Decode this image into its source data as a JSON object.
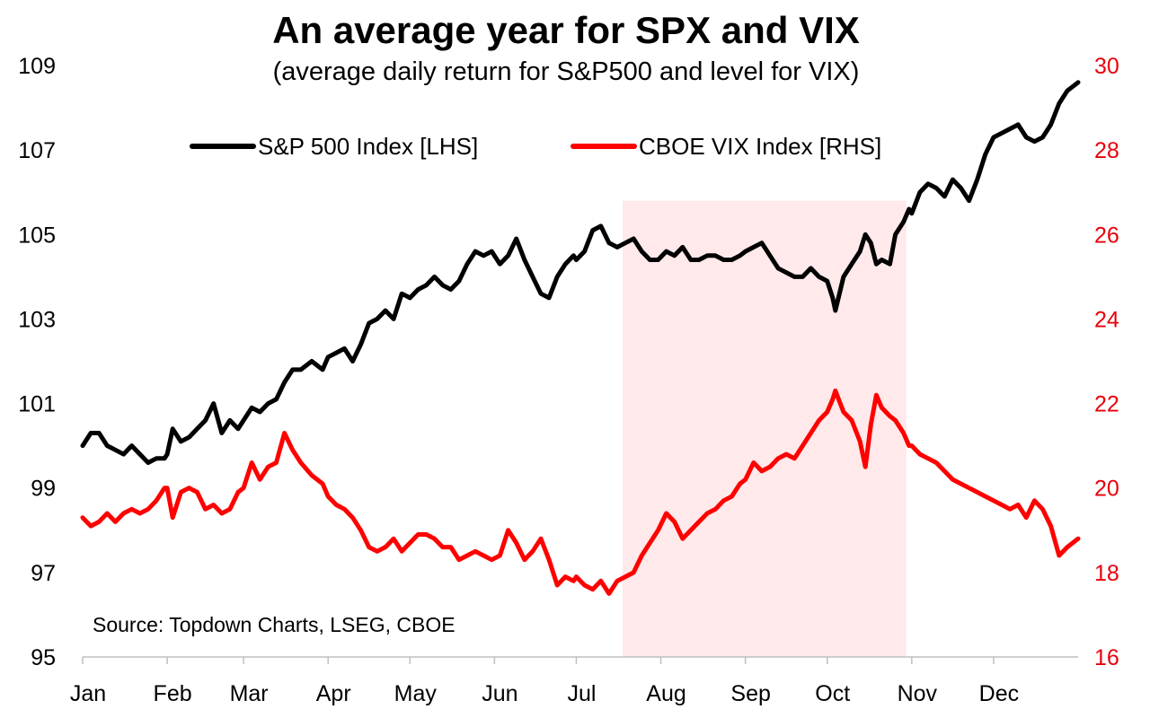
{
  "colors": {
    "spx": "#000000",
    "vix": "#ff0000",
    "shade": "#ffe9ea",
    "rhs_axis": "#e8000b"
  },
  "chart_data": {
    "type": "line",
    "title": "An average year for SPX and VIX",
    "subtitle": "(average daily return for S&P500 and level for VIX)",
    "source": "Source: Topdown Charts, LSEG, CBOE",
    "x_domain": [
      0,
      365
    ],
    "x_ticks": [
      {
        "label": "Jan",
        "day": 0
      },
      {
        "label": "Feb",
        "day": 31
      },
      {
        "label": "Mar",
        "day": 59
      },
      {
        "label": "Apr",
        "day": 90
      },
      {
        "label": "May",
        "day": 120
      },
      {
        "label": "Jun",
        "day": 151
      },
      {
        "label": "Jul",
        "day": 181
      },
      {
        "label": "Aug",
        "day": 212
      },
      {
        "label": "Sep",
        "day": 243
      },
      {
        "label": "Oct",
        "day": 273
      },
      {
        "label": "Nov",
        "day": 304
      },
      {
        "label": "Dec",
        "day": 334
      }
    ],
    "y_left": {
      "min": 95,
      "max": 109,
      "ticks": [
        95,
        97,
        99,
        101,
        103,
        105,
        107,
        109
      ]
    },
    "y_right": {
      "min": 16,
      "max": 30,
      "ticks": [
        16,
        18,
        20,
        22,
        24,
        26,
        28,
        30
      ]
    },
    "shaded_region": {
      "x_start": 198,
      "x_end": 302,
      "y_top": 105.8
    },
    "legend": {
      "position": "top-center"
    },
    "grid": false,
    "series": [
      {
        "name": "S&P 500 Index [LHS]",
        "axis": "left",
        "points": [
          [
            0,
            100.0
          ],
          [
            3,
            100.3
          ],
          [
            6,
            100.3
          ],
          [
            9,
            100.0
          ],
          [
            12,
            99.9
          ],
          [
            15,
            99.8
          ],
          [
            18,
            100.0
          ],
          [
            21,
            99.8
          ],
          [
            24,
            99.6
          ],
          [
            27,
            99.7
          ],
          [
            30,
            99.7
          ],
          [
            31,
            99.8
          ],
          [
            33,
            100.4
          ],
          [
            36,
            100.1
          ],
          [
            39,
            100.2
          ],
          [
            42,
            100.4
          ],
          [
            45,
            100.6
          ],
          [
            48,
            101.0
          ],
          [
            51,
            100.3
          ],
          [
            54,
            100.6
          ],
          [
            57,
            100.4
          ],
          [
            59,
            100.6
          ],
          [
            62,
            100.9
          ],
          [
            65,
            100.8
          ],
          [
            68,
            101.0
          ],
          [
            71,
            101.1
          ],
          [
            74,
            101.5
          ],
          [
            77,
            101.8
          ],
          [
            80,
            101.8
          ],
          [
            84,
            102.0
          ],
          [
            88,
            101.8
          ],
          [
            90,
            102.1
          ],
          [
            93,
            102.2
          ],
          [
            96,
            102.3
          ],
          [
            99,
            102.0
          ],
          [
            102,
            102.4
          ],
          [
            105,
            102.9
          ],
          [
            108,
            103.0
          ],
          [
            111,
            103.2
          ],
          [
            114,
            103.0
          ],
          [
            117,
            103.6
          ],
          [
            120,
            103.5
          ],
          [
            123,
            103.7
          ],
          [
            126,
            103.8
          ],
          [
            129,
            104.0
          ],
          [
            132,
            103.8
          ],
          [
            135,
            103.7
          ],
          [
            138,
            103.9
          ],
          [
            141,
            104.3
          ],
          [
            144,
            104.6
          ],
          [
            147,
            104.5
          ],
          [
            150,
            104.6
          ],
          [
            153,
            104.3
          ],
          [
            156,
            104.5
          ],
          [
            159,
            104.9
          ],
          [
            162,
            104.4
          ],
          [
            165,
            104.0
          ],
          [
            168,
            103.6
          ],
          [
            171,
            103.5
          ],
          [
            174,
            104.0
          ],
          [
            177,
            104.3
          ],
          [
            180,
            104.5
          ],
          [
            181,
            104.4
          ],
          [
            184,
            104.6
          ],
          [
            187,
            105.1
          ],
          [
            190,
            105.2
          ],
          [
            193,
            104.8
          ],
          [
            196,
            104.7
          ],
          [
            199,
            104.8
          ],
          [
            202,
            104.9
          ],
          [
            205,
            104.6
          ],
          [
            208,
            104.4
          ],
          [
            211,
            104.4
          ],
          [
            214,
            104.6
          ],
          [
            217,
            104.5
          ],
          [
            220,
            104.7
          ],
          [
            223,
            104.4
          ],
          [
            226,
            104.4
          ],
          [
            229,
            104.5
          ],
          [
            232,
            104.5
          ],
          [
            235,
            104.4
          ],
          [
            238,
            104.4
          ],
          [
            241,
            104.5
          ],
          [
            243,
            104.6
          ],
          [
            246,
            104.7
          ],
          [
            249,
            104.8
          ],
          [
            252,
            104.5
          ],
          [
            255,
            104.2
          ],
          [
            258,
            104.1
          ],
          [
            261,
            104.0
          ],
          [
            264,
            104.0
          ],
          [
            267,
            104.2
          ],
          [
            270,
            104.0
          ],
          [
            273,
            103.9
          ],
          [
            275,
            103.5
          ],
          [
            276,
            103.2
          ],
          [
            279,
            104.0
          ],
          [
            282,
            104.3
          ],
          [
            285,
            104.6
          ],
          [
            287,
            105.0
          ],
          [
            289,
            104.8
          ],
          [
            291,
            104.3
          ],
          [
            293,
            104.4
          ],
          [
            296,
            104.3
          ],
          [
            298,
            105.0
          ],
          [
            301,
            105.3
          ],
          [
            303,
            105.6
          ],
          [
            304,
            105.5
          ],
          [
            307,
            106.0
          ],
          [
            310,
            106.2
          ],
          [
            313,
            106.1
          ],
          [
            316,
            105.9
          ],
          [
            319,
            106.3
          ],
          [
            322,
            106.1
          ],
          [
            325,
            105.8
          ],
          [
            328,
            106.3
          ],
          [
            331,
            106.9
          ],
          [
            334,
            107.3
          ],
          [
            337,
            107.4
          ],
          [
            340,
            107.5
          ],
          [
            343,
            107.6
          ],
          [
            346,
            107.3
          ],
          [
            349,
            107.2
          ],
          [
            352,
            107.3
          ],
          [
            355,
            107.6
          ],
          [
            358,
            108.1
          ],
          [
            361,
            108.4
          ],
          [
            365,
            108.6
          ]
        ]
      },
      {
        "name": "CBOE VIX Index [RHS]",
        "axis": "right",
        "points": [
          [
            0,
            19.3
          ],
          [
            3,
            19.1
          ],
          [
            6,
            19.2
          ],
          [
            9,
            19.4
          ],
          [
            12,
            19.2
          ],
          [
            15,
            19.4
          ],
          [
            18,
            19.5
          ],
          [
            21,
            19.4
          ],
          [
            24,
            19.5
          ],
          [
            27,
            19.7
          ],
          [
            30,
            20.0
          ],
          [
            31,
            20.0
          ],
          [
            33,
            19.3
          ],
          [
            36,
            19.9
          ],
          [
            39,
            20.0
          ],
          [
            42,
            19.9
          ],
          [
            45,
            19.5
          ],
          [
            48,
            19.6
          ],
          [
            51,
            19.4
          ],
          [
            54,
            19.5
          ],
          [
            57,
            19.9
          ],
          [
            59,
            20.0
          ],
          [
            62,
            20.6
          ],
          [
            65,
            20.2
          ],
          [
            68,
            20.5
          ],
          [
            71,
            20.6
          ],
          [
            74,
            21.3
          ],
          [
            77,
            20.9
          ],
          [
            80,
            20.6
          ],
          [
            84,
            20.3
          ],
          [
            88,
            20.1
          ],
          [
            90,
            19.8
          ],
          [
            93,
            19.6
          ],
          [
            96,
            19.5
          ],
          [
            99,
            19.3
          ],
          [
            102,
            19.0
          ],
          [
            105,
            18.6
          ],
          [
            108,
            18.5
          ],
          [
            111,
            18.6
          ],
          [
            114,
            18.8
          ],
          [
            117,
            18.5
          ],
          [
            120,
            18.7
          ],
          [
            123,
            18.9
          ],
          [
            126,
            18.9
          ],
          [
            129,
            18.8
          ],
          [
            132,
            18.6
          ],
          [
            135,
            18.6
          ],
          [
            138,
            18.3
          ],
          [
            141,
            18.4
          ],
          [
            144,
            18.5
          ],
          [
            147,
            18.4
          ],
          [
            150,
            18.3
          ],
          [
            153,
            18.4
          ],
          [
            156,
            19.0
          ],
          [
            159,
            18.7
          ],
          [
            162,
            18.3
          ],
          [
            165,
            18.5
          ],
          [
            168,
            18.8
          ],
          [
            171,
            18.3
          ],
          [
            174,
            17.7
          ],
          [
            177,
            17.9
          ],
          [
            180,
            17.8
          ],
          [
            181,
            17.9
          ],
          [
            184,
            17.7
          ],
          [
            187,
            17.6
          ],
          [
            190,
            17.8
          ],
          [
            193,
            17.5
          ],
          [
            196,
            17.8
          ],
          [
            199,
            17.9
          ],
          [
            202,
            18.0
          ],
          [
            205,
            18.4
          ],
          [
            208,
            18.7
          ],
          [
            211,
            19.0
          ],
          [
            214,
            19.4
          ],
          [
            217,
            19.2
          ],
          [
            220,
            18.8
          ],
          [
            223,
            19.0
          ],
          [
            226,
            19.2
          ],
          [
            229,
            19.4
          ],
          [
            232,
            19.5
          ],
          [
            235,
            19.7
          ],
          [
            238,
            19.8
          ],
          [
            241,
            20.1
          ],
          [
            243,
            20.2
          ],
          [
            246,
            20.6
          ],
          [
            249,
            20.4
          ],
          [
            252,
            20.5
          ],
          [
            255,
            20.7
          ],
          [
            258,
            20.8
          ],
          [
            261,
            20.7
          ],
          [
            264,
            21.0
          ],
          [
            267,
            21.3
          ],
          [
            270,
            21.6
          ],
          [
            273,
            21.8
          ],
          [
            275,
            22.1
          ],
          [
            276,
            22.3
          ],
          [
            279,
            21.8
          ],
          [
            282,
            21.6
          ],
          [
            285,
            21.1
          ],
          [
            287,
            20.5
          ],
          [
            289,
            21.5
          ],
          [
            291,
            22.2
          ],
          [
            293,
            21.9
          ],
          [
            296,
            21.7
          ],
          [
            298,
            21.6
          ],
          [
            301,
            21.3
          ],
          [
            303,
            21.0
          ],
          [
            304,
            21.0
          ],
          [
            307,
            20.8
          ],
          [
            310,
            20.7
          ],
          [
            313,
            20.6
          ],
          [
            316,
            20.4
          ],
          [
            319,
            20.2
          ],
          [
            322,
            20.1
          ],
          [
            325,
            20.0
          ],
          [
            328,
            19.9
          ],
          [
            331,
            19.8
          ],
          [
            334,
            19.7
          ],
          [
            337,
            19.6
          ],
          [
            340,
            19.5
          ],
          [
            343,
            19.6
          ],
          [
            346,
            19.3
          ],
          [
            349,
            19.7
          ],
          [
            352,
            19.5
          ],
          [
            355,
            19.1
          ],
          [
            358,
            18.4
          ],
          [
            361,
            18.6
          ],
          [
            365,
            18.8
          ]
        ]
      }
    ]
  }
}
